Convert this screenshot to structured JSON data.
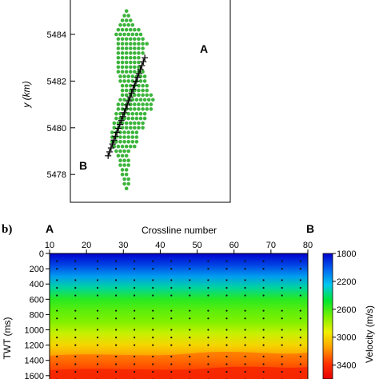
{
  "chart_data": [
    {
      "panel": "a",
      "type": "scatter",
      "xlabel": "",
      "ylabel": "y (km)",
      "ylim": [
        5477.0,
        5485.5
      ],
      "yticks": [
        "5478",
        "5480",
        "5482",
        "5484"
      ],
      "marker_color": "#3cb43c",
      "grid": false,
      "line_labels": {
        "start": "A",
        "end": "B"
      },
      "geophone_grid": {
        "x_spacing": 0.2,
        "y_spacing": 0.2,
        "row_y": [
          5485.0,
          5484.8,
          5484.6,
          5484.4,
          5484.2,
          5484.0,
          5483.8,
          5483.6,
          5483.4,
          5483.2,
          5483.0,
          5482.8,
          5482.6,
          5482.4,
          5482.2,
          5482.0,
          5481.8,
          5481.6,
          5481.4,
          5481.2,
          5481.0,
          5480.8,
          5480.6,
          5480.4,
          5480.2,
          5480.0,
          5479.8,
          5479.6,
          5479.4,
          5479.2,
          5479.0,
          5478.8,
          5478.6,
          5478.4,
          5478.2,
          5478.0,
          5477.8,
          5477.6,
          5477.4
        ],
        "row_x_ranges": [
          [
            1.3,
            1.3
          ],
          [
            1.2,
            1.4
          ],
          [
            1.1,
            1.5
          ],
          [
            1.0,
            1.6
          ],
          [
            0.9,
            1.9
          ],
          [
            0.8,
            2.0
          ],
          [
            0.9,
            2.1
          ],
          [
            0.9,
            2.2
          ],
          [
            0.9,
            2.1
          ],
          [
            0.9,
            2.0
          ],
          [
            0.9,
            1.9
          ],
          [
            0.9,
            1.8
          ],
          [
            0.9,
            1.9
          ],
          [
            0.9,
            2.0
          ],
          [
            1.0,
            2.1
          ],
          [
            1.0,
            2.2
          ],
          [
            1.1,
            2.3
          ],
          [
            1.1,
            2.4
          ],
          [
            1.1,
            2.5
          ],
          [
            1.0,
            2.6
          ],
          [
            0.9,
            2.5
          ],
          [
            0.9,
            2.4
          ],
          [
            0.8,
            2.3
          ],
          [
            0.8,
            2.2
          ],
          [
            0.7,
            2.1
          ],
          [
            0.7,
            2.0
          ],
          [
            0.6,
            1.9
          ],
          [
            0.6,
            1.8
          ],
          [
            0.6,
            1.7
          ],
          [
            0.7,
            1.6
          ],
          [
            0.8,
            1.5
          ],
          [
            0.9,
            1.4
          ],
          [
            1.0,
            1.4
          ],
          [
            1.0,
            1.3
          ],
          [
            1.1,
            1.3
          ],
          [
            1.1,
            1.3
          ],
          [
            1.2,
            1.3
          ],
          [
            1.2,
            1.3
          ],
          [
            1.3,
            1.3
          ]
        ]
      },
      "crossline_points": {
        "count": 26,
        "start": {
          "x": 2.2,
          "y": 5483.0
        },
        "end": {
          "x": 0.4,
          "y": 5478.8
        }
      }
    },
    {
      "panel": "b",
      "type": "heatmap",
      "title": "Crossline number",
      "xlabel": "Crossline number",
      "ylabel": "TWT (ms)",
      "xlim": [
        10,
        80
      ],
      "xticks": [
        "10",
        "20",
        "30",
        "40",
        "50",
        "60",
        "70",
        "80"
      ],
      "ylim": [
        0,
        1650
      ],
      "yticks": [
        "0",
        "200",
        "400",
        "600",
        "800",
        "1000",
        "1200",
        "1400",
        "1600"
      ],
      "end_labels": {
        "left": "A",
        "right": "B"
      },
      "colorbar": {
        "label": "Velocity (m/s)",
        "range": [
          1800,
          3600
        ],
        "ticks": [
          "1800",
          "2200",
          "2600",
          "3000",
          "3400"
        ],
        "colors": [
          "#0000cd",
          "#0064f0",
          "#00c8f0",
          "#00e632",
          "#78f000",
          "#f0f000",
          "#ffa000",
          "#ff3200",
          "#e60000"
        ]
      },
      "velocity_profile": {
        "twt": [
          0,
          150,
          300,
          450,
          600,
          750,
          900,
          1050,
          1200,
          1350,
          1500,
          1650
        ],
        "velocity": [
          1800,
          1950,
          2150,
          2350,
          2550,
          2650,
          2720,
          2850,
          3000,
          3150,
          3350,
          3450
        ]
      },
      "sample_columns": [
        12,
        17,
        23,
        28,
        33,
        38,
        43,
        48,
        53,
        58,
        63,
        68,
        73,
        78
      ],
      "sample_twt_groups": [
        [
          100,
          200
        ],
        [
          350,
          450,
          550
        ],
        [
          750,
          850
        ],
        [
          1000,
          1100,
          1200
        ],
        [
          1350,
          1450,
          1550,
          1650
        ]
      ]
    }
  ],
  "labels": {
    "panel_b": "b)",
    "panel_a_point_A": "A",
    "panel_a_point_B": "B"
  }
}
